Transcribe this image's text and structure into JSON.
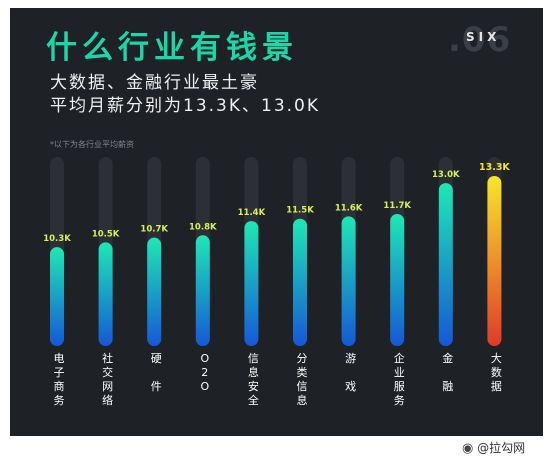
{
  "header": {
    "title": "什么行业有钱景",
    "badge_number": ".06",
    "badge_text": "SIX",
    "subtitle_line1": "大数据、金融行业最土豪",
    "subtitle_line2": "平均月薪分别为13.3K、13.0K",
    "note": "*以下为各行业平均薪资"
  },
  "footer": {
    "icon": "weibo-icon",
    "text": "@拉勾网"
  },
  "colors": {
    "background": "#1e2126",
    "title": "#19d7a8",
    "bar_top": "#1ee8b4",
    "bar_bottom": "#1558d6",
    "highlight_top": "#f7e72a",
    "highlight_bottom": "#e03a2a",
    "track": "#2c3036",
    "value_label": "#d8f05a",
    "highlight_label": "#f7e72a"
  },
  "chart_data": {
    "type": "bar",
    "categories": [
      "电子商务",
      "社交网络",
      "硬件",
      "O2O",
      "信息安全",
      "分类信息",
      "游戏",
      "企业服务",
      "金融",
      "大数据"
    ],
    "category_labels": [
      "电\n子\n商\n务",
      "社\n交\n网\n络",
      "硬\n\n件",
      "O\n2\nO",
      "信\n息\n安\n全",
      "分\n类\n信\n息",
      "游\n\n戏",
      "企\n业\n服\n务",
      "金\n\n融",
      "大\n数\n据"
    ],
    "values": [
      10.3,
      10.5,
      10.7,
      10.8,
      11.4,
      11.5,
      11.6,
      11.7,
      13.0,
      13.3
    ],
    "value_labels": [
      "10.3K",
      "10.5K",
      "10.7K",
      "10.8K",
      "11.4K",
      "11.5K",
      "11.6K",
      "11.7K",
      "13.0K",
      "13.3K"
    ],
    "highlight_index": 9,
    "unit": "K",
    "grid": false,
    "legend": "none"
  }
}
